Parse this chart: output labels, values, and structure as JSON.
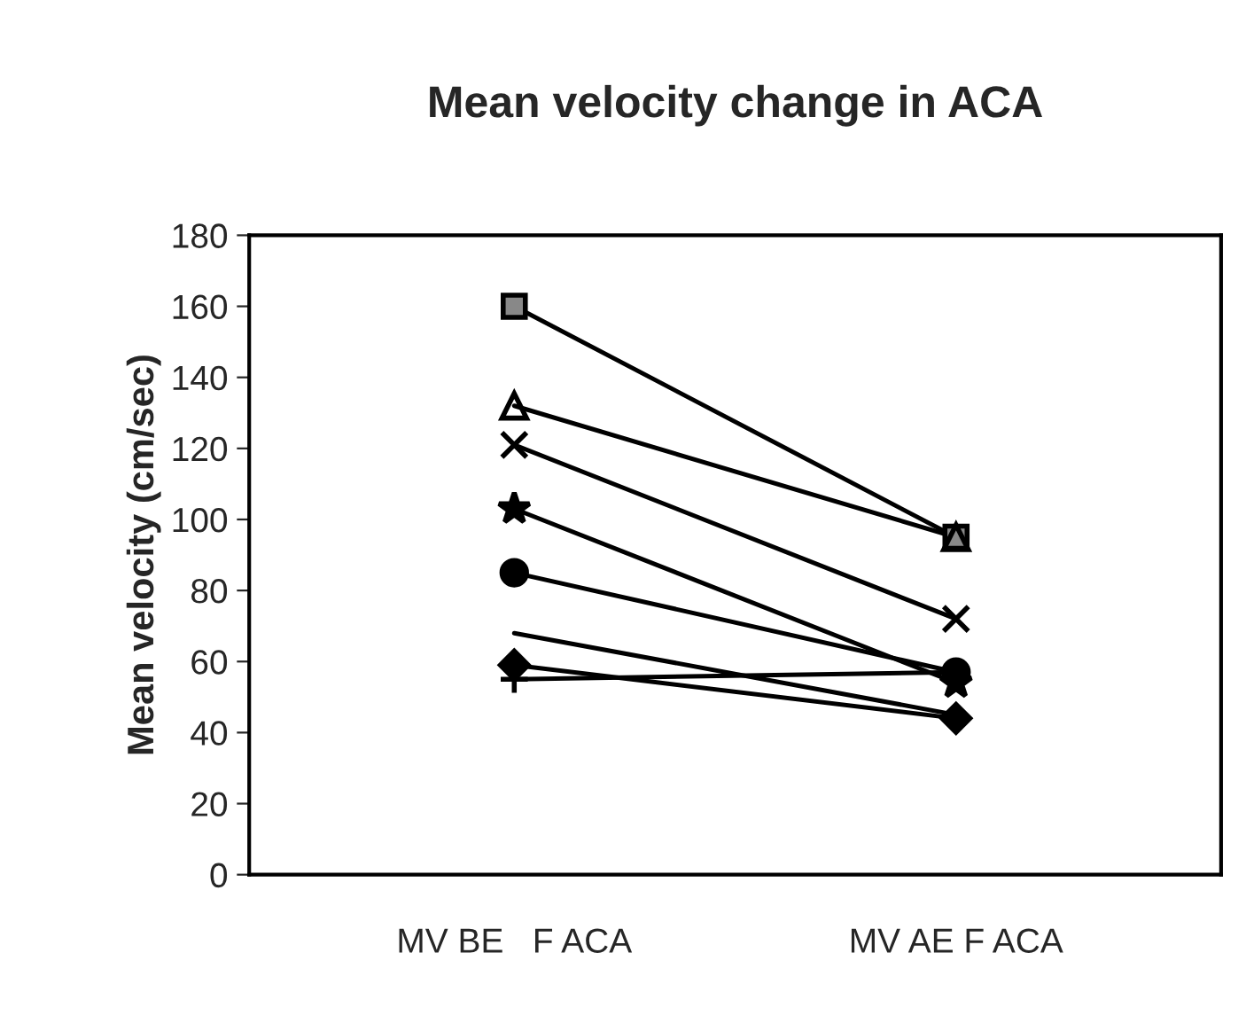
{
  "chart_data": {
    "type": "line",
    "title": "Mean velocity change in ACA",
    "ylabel": "Mean velocity (cm/sec)",
    "categories": [
      "MV BE   F ACA",
      "MV AE F ACA"
    ],
    "ylim": [
      0,
      180
    ],
    "yticks": [
      0,
      20,
      40,
      60,
      80,
      100,
      120,
      140,
      160,
      180
    ],
    "grid": false,
    "legend": false,
    "series": [
      {
        "color": "#000000",
        "marker": "square",
        "values": [
          160,
          95
        ]
      },
      {
        "color": "#000000",
        "marker": "triangle",
        "values": [
          132,
          95
        ]
      },
      {
        "color": "#000000",
        "marker": "cross",
        "values": [
          121,
          72
        ]
      },
      {
        "color": "#000000",
        "marker": "star",
        "values": [
          103,
          54
        ]
      },
      {
        "color": "#000000",
        "marker": "circle",
        "values": [
          85,
          57
        ]
      },
      {
        "color": "#000000",
        "marker": "none",
        "values": [
          68,
          45
        ]
      },
      {
        "color": "#000000",
        "marker": "diamond",
        "values": [
          59,
          44
        ]
      },
      {
        "color": "#000000",
        "marker": "plus",
        "values": [
          55,
          57
        ]
      }
    ]
  }
}
